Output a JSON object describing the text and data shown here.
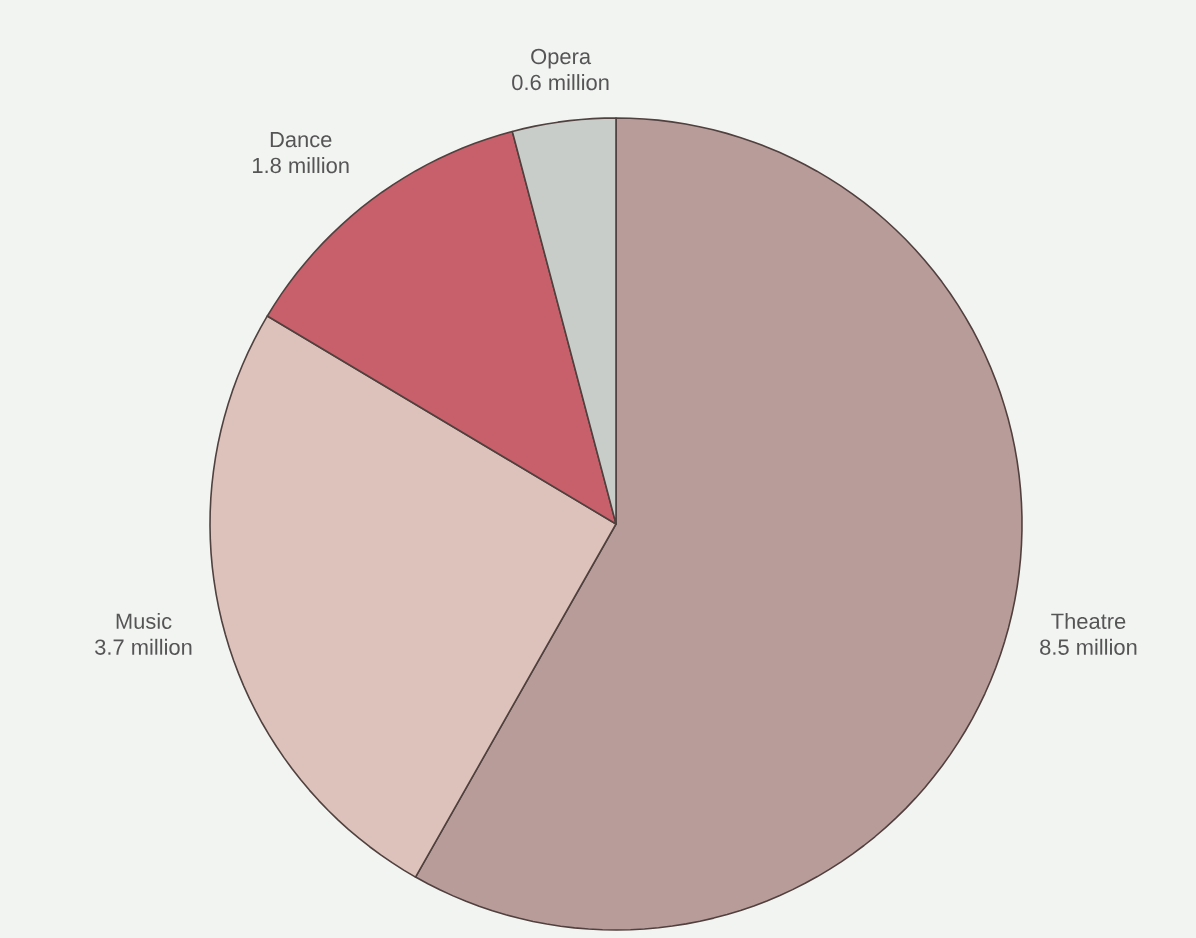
{
  "chart_data": {
    "type": "pie",
    "categories": [
      "Theatre",
      "Music",
      "Dance",
      "Opera"
    ],
    "values": [
      8.5,
      3.7,
      1.8,
      0.6
    ],
    "value_labels": [
      "8.5 million",
      "3.7 million",
      "1.8 million",
      "0.6 million"
    ],
    "colors": [
      "#b89c9a",
      "#dcc2ba",
      "#c8606c",
      "#c9cdca"
    ]
  }
}
